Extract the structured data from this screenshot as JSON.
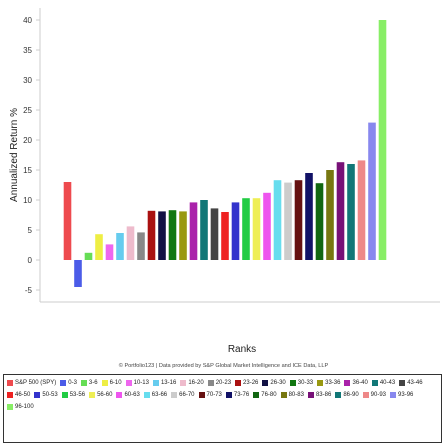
{
  "chart_data": {
    "type": "bar",
    "xlabel": "Ranks",
    "ylabel": "Annualized Return %",
    "ylim": [
      -7,
      42
    ],
    "yticks": [
      -5,
      0,
      5,
      10,
      15,
      20,
      25,
      30,
      35,
      40
    ],
    "grid": false,
    "legend_position": "bottom",
    "categories": [
      "S&P 500 (SPY)",
      "0-3",
      "3-6",
      "6-10",
      "10-13",
      "13-16",
      "16-20",
      "20-23",
      "23-26",
      "26-30",
      "30-33",
      "33-36",
      "36-40",
      "40-43",
      "43-46",
      "46-50",
      "50-53",
      "53-56",
      "56-60",
      "60-63",
      "63-66",
      "66-70",
      "70-73",
      "73-76",
      "76-80",
      "80-83",
      "83-86",
      "86-90",
      "90-93",
      "93-96",
      "96-100"
    ],
    "values": [
      13,
      -4.5,
      1.2,
      4.3,
      2.6,
      4.5,
      5.6,
      4.6,
      8.2,
      8.1,
      8.3,
      8.1,
      9.6,
      10.0,
      8.6,
      8.0,
      9.6,
      10.3,
      10.3,
      11.2,
      13.3,
      12.9,
      13.3,
      14.5,
      12.8,
      15.0,
      16.3,
      16.0,
      16.6,
      22.9,
      40.0
    ],
    "colors": [
      "#ee4a4e",
      "#4b5ce8",
      "#66dd55",
      "#eeee44",
      "#ee66ee",
      "#66ccee",
      "#eebbcc",
      "#888888",
      "#aa1111",
      "#111144",
      "#117711",
      "#999911",
      "#aa22aa",
      "#117777",
      "#444444",
      "#ee2222",
      "#3333cc",
      "#22cc44",
      "#eeee55",
      "#ee55ee",
      "#66ddee",
      "#cccccc",
      "#661111",
      "#111166",
      "#116611",
      "#777711",
      "#771177",
      "#117777",
      "#ee8888",
      "#8888ee",
      "#88ee66"
    ]
  },
  "credit_text": "© Portfolio123 | Data provided by S&P Global Market Intelligence and ICE Data, LLP"
}
